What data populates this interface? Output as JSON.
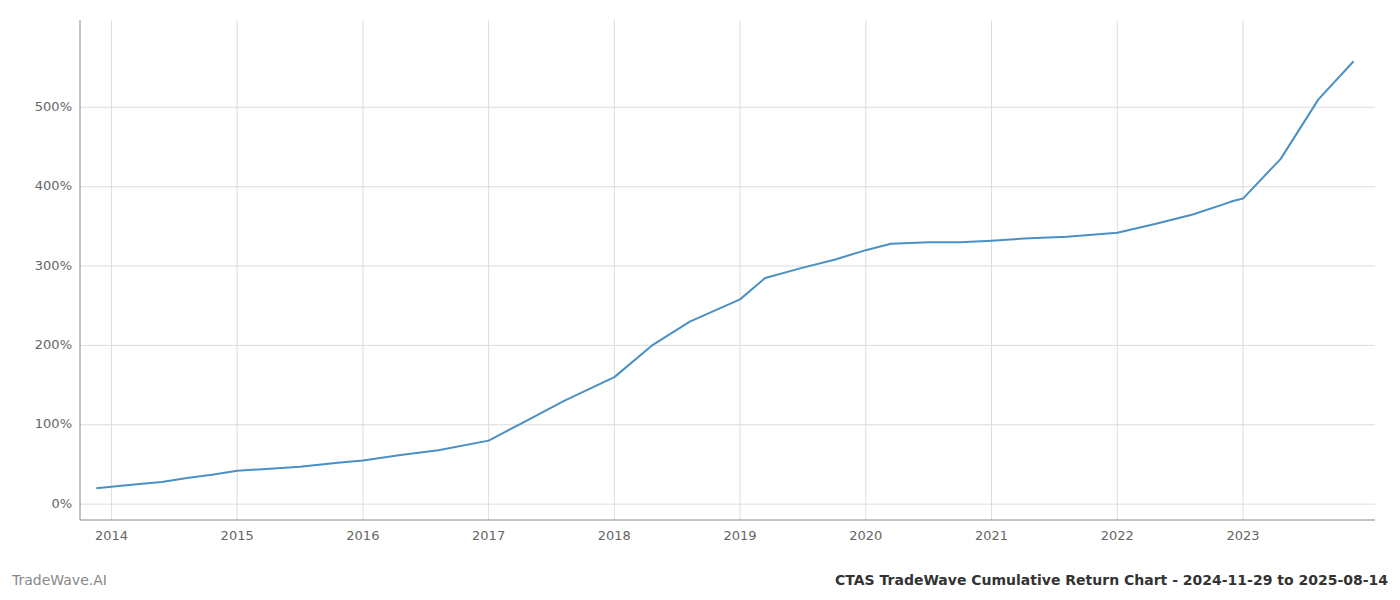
{
  "chart_data": {
    "type": "line",
    "title": "CTAS TradeWave Cumulative Return Chart - 2024-11-29 to 2025-08-14",
    "annotations": [
      "TradeWave.AI"
    ],
    "x": [
      2013.88,
      2014.0,
      2014.2,
      2014.4,
      2014.6,
      2014.8,
      2015.0,
      2015.2,
      2015.5,
      2015.8,
      2016.0,
      2016.3,
      2016.6,
      2017.0,
      2017.3,
      2017.6,
      2018.0,
      2018.3,
      2018.6,
      2019.0,
      2019.2,
      2019.5,
      2019.75,
      2020.0,
      2020.2,
      2020.5,
      2020.75,
      2021.0,
      2021.3,
      2021.6,
      2022.0,
      2022.3,
      2022.6,
      2022.85,
      2022.92,
      2023.0,
      2023.3,
      2023.6,
      2023.88
    ],
    "values": [
      20,
      22,
      25,
      28,
      33,
      37,
      42,
      44,
      47,
      52,
      55,
      62,
      68,
      80,
      105,
      130,
      160,
      200,
      230,
      258,
      285,
      298,
      308,
      320,
      328,
      330,
      330,
      332,
      335,
      337,
      342,
      353,
      365,
      378,
      382,
      385,
      435,
      510,
      558
    ],
    "color": "#4a90c4",
    "xlim": [
      2013.75,
      2024.05
    ],
    "xticks": [
      2014,
      2015,
      2016,
      2017,
      2018,
      2019,
      2020,
      2021,
      2022,
      2023
    ],
    "ylim": [
      -20,
      610
    ],
    "yticks": [
      {
        "value": 0,
        "label": "0%"
      },
      {
        "value": 100,
        "label": "100%"
      },
      {
        "value": 200,
        "label": "200%"
      },
      {
        "value": 300,
        "label": "300%"
      },
      {
        "value": 400,
        "label": "400%"
      },
      {
        "value": 500,
        "label": "500%"
      }
    ],
    "grid": true
  }
}
